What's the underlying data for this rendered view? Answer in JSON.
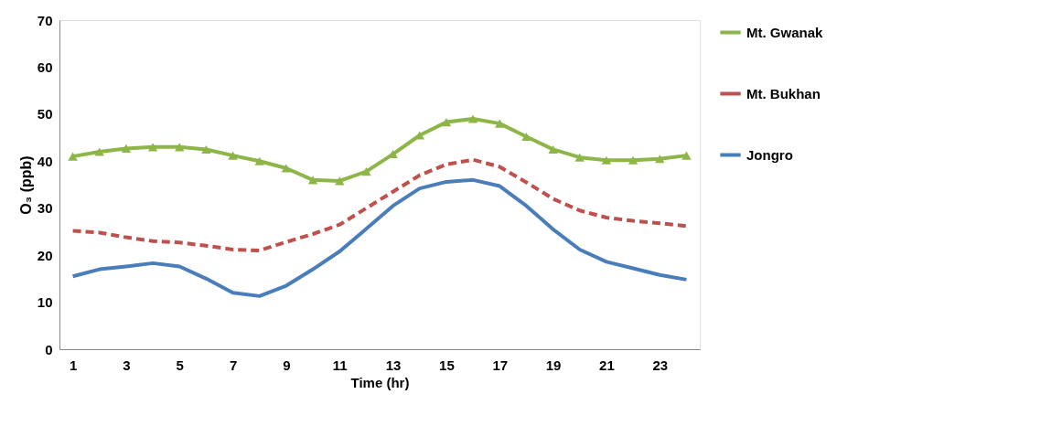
{
  "chart_data": {
    "type": "line",
    "xlabel": "Time (hr)",
    "ylabel": "O₃ (ppb)",
    "x": [
      1,
      2,
      3,
      4,
      5,
      6,
      7,
      8,
      9,
      10,
      11,
      12,
      13,
      14,
      15,
      16,
      17,
      18,
      19,
      20,
      21,
      22,
      23,
      24
    ],
    "xlim": [
      0.5,
      24.5
    ],
    "xticks": [
      1,
      3,
      5,
      7,
      9,
      11,
      13,
      15,
      17,
      19,
      21,
      23
    ],
    "ylim": [
      0,
      70
    ],
    "yticks": [
      0,
      10,
      20,
      30,
      40,
      50,
      60,
      70
    ],
    "grid": false,
    "legend": "right",
    "series": [
      {
        "name": "Mt. Gwanak",
        "color": "#8db548",
        "marker": "triangle",
        "line_style": "solid",
        "values": [
          41,
          42,
          42.7,
          43,
          43,
          42.5,
          41.2,
          40,
          38.5,
          36,
          35.8,
          37.8,
          41.5,
          45.5,
          48.3,
          49,
          48,
          45.2,
          42.5,
          40.8,
          40.2,
          40.2,
          40.5,
          41.2
        ]
      },
      {
        "name": "Mt. Bukhan",
        "color": "#c0504d",
        "marker": "none",
        "line_style": "dashed",
        "values": [
          25.2,
          24.8,
          23.8,
          23,
          22.7,
          22,
          21.2,
          21,
          22.8,
          24.5,
          26.5,
          30,
          33.5,
          37,
          39.3,
          40.3,
          38.8,
          35.5,
          32,
          29.5,
          28,
          27.3,
          26.8,
          26.2
        ]
      },
      {
        "name": "Jongro",
        "color": "#4a7ebb",
        "marker": "none",
        "line_style": "solid",
        "values": [
          15.5,
          17,
          17.6,
          18.3,
          17.6,
          15,
          12,
          11.3,
          13.5,
          17,
          20.8,
          25.6,
          30.5,
          34.2,
          35.6,
          36,
          34.7,
          30.5,
          25.5,
          21.2,
          18.6,
          17.2,
          15.8,
          14.8
        ]
      }
    ]
  }
}
